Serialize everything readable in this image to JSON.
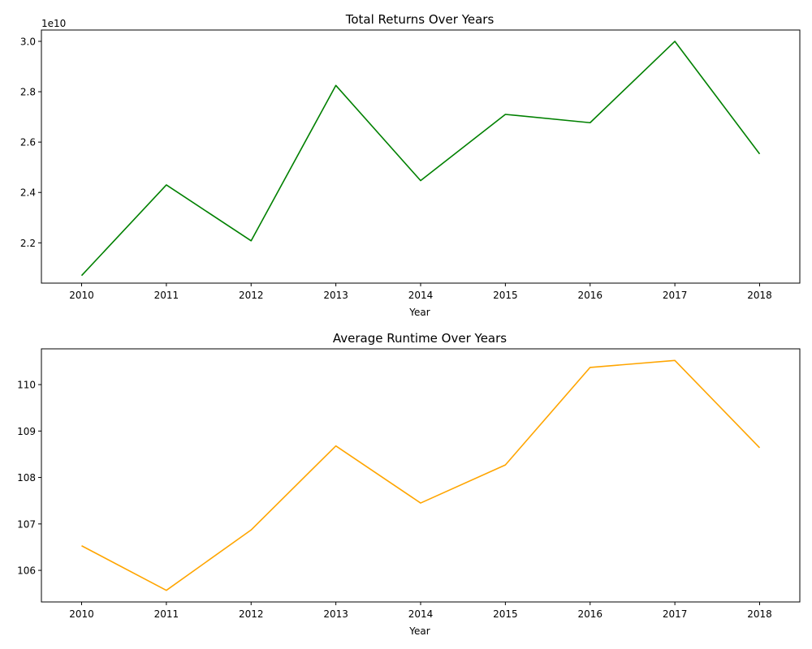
{
  "chart_data": [
    {
      "type": "line",
      "title": "Total Returns Over Years",
      "xlabel": "Year",
      "ylabel": "",
      "offset_text": "1e10",
      "x": [
        2010,
        2011,
        2012,
        2013,
        2014,
        2015,
        2016,
        2017,
        2018
      ],
      "series": [
        {
          "color": "#008000",
          "values": [
            20700000000,
            24300000000,
            22080000000,
            28250000000,
            24470000000,
            27100000000,
            26770000000,
            30000000000,
            25530000000
          ]
        }
      ],
      "ylim": [
        20400000000,
        30450000000
      ],
      "yticks": [
        22000000000,
        24000000000,
        26000000000,
        28000000000,
        30000000000
      ],
      "ytick_labels": [
        "2.2",
        "2.4",
        "2.6",
        "2.8",
        "3.0"
      ],
      "xtick_labels": [
        "2010",
        "2011",
        "2012",
        "2013",
        "2014",
        "2015",
        "2016",
        "2017",
        "2018"
      ],
      "grid": false,
      "legend": "none"
    },
    {
      "type": "line",
      "title": "Average Runtime Over Years",
      "xlabel": "Year",
      "ylabel": "",
      "offset_text": "",
      "x": [
        2010,
        2011,
        2012,
        2013,
        2014,
        2015,
        2016,
        2017,
        2018
      ],
      "series": [
        {
          "color": "#FFA500",
          "values": [
            106.53,
            105.57,
            106.87,
            108.68,
            107.45,
            108.27,
            110.37,
            110.52,
            108.64
          ]
        }
      ],
      "ylim": [
        105.32,
        110.77
      ],
      "yticks": [
        106,
        107,
        108,
        109,
        110
      ],
      "ytick_labels": [
        "106",
        "107",
        "108",
        "109",
        "110"
      ],
      "xtick_labels": [
        "2010",
        "2011",
        "2012",
        "2013",
        "2014",
        "2015",
        "2016",
        "2017",
        "2018"
      ],
      "grid": false,
      "legend": "none"
    }
  ]
}
